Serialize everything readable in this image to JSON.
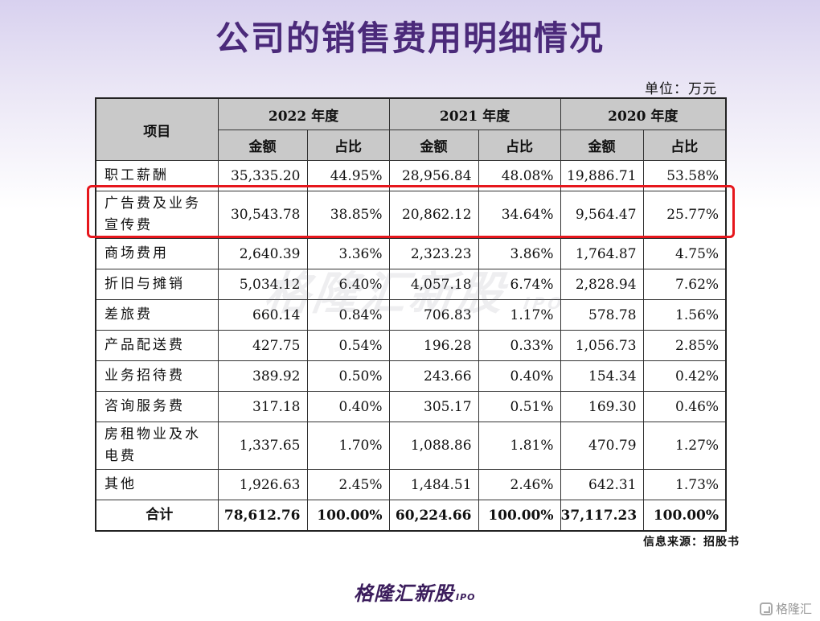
{
  "title": "公司的销售费用明细情况",
  "unit": "单位：万元",
  "table": {
    "item_header": "项目",
    "years": [
      "2022 年度",
      "2021 年度",
      "2020 年度"
    ],
    "amount_label": "金额",
    "ratio_label": "占比",
    "rows": [
      {
        "name": "职工薪酬",
        "v": [
          "35,335.20",
          "44.95%",
          "28,956.84",
          "48.08%",
          "19,886.71",
          "53.58%"
        ]
      },
      {
        "name": "广告费及业务宣传费",
        "v": [
          "30,543.78",
          "38.85%",
          "20,862.12",
          "34.64%",
          "9,564.47",
          "25.77%"
        ]
      },
      {
        "name": "商场费用",
        "v": [
          "2,640.39",
          "3.36%",
          "2,323.23",
          "3.86%",
          "1,764.87",
          "4.75%"
        ]
      },
      {
        "name": "折旧与摊销",
        "v": [
          "5,034.12",
          "6.40%",
          "4,057.18",
          "6.74%",
          "2,828.94",
          "7.62%"
        ]
      },
      {
        "name": "差旅费",
        "v": [
          "660.14",
          "0.84%",
          "706.83",
          "1.17%",
          "578.78",
          "1.56%"
        ]
      },
      {
        "name": "产品配送费",
        "v": [
          "427.75",
          "0.54%",
          "196.28",
          "0.33%",
          "1,056.73",
          "2.85%"
        ]
      },
      {
        "name": "业务招待费",
        "v": [
          "389.92",
          "0.50%",
          "243.66",
          "0.40%",
          "154.34",
          "0.42%"
        ]
      },
      {
        "name": "咨询服务费",
        "v": [
          "317.18",
          "0.40%",
          "305.17",
          "0.51%",
          "169.30",
          "0.46%"
        ]
      },
      {
        "name": "房租物业及水电费",
        "v": [
          "1,337.65",
          "1.70%",
          "1,088.86",
          "1.81%",
          "470.79",
          "1.27%"
        ]
      },
      {
        "name": "其他",
        "v": [
          "1,926.63",
          "2.45%",
          "1,484.51",
          "2.46%",
          "642.31",
          "1.73%"
        ]
      },
      {
        "name": "合计",
        "v": [
          "78,612.76",
          "100.00%",
          "60,224.66",
          "100.00%",
          "37,117.23",
          "100.00%"
        ]
      }
    ]
  },
  "watermark": "格隆汇新股",
  "watermark_ipo": "IPO",
  "source": "信息来源：招股书",
  "logo": "格隆汇新股",
  "logo_ipo": "IPO",
  "corner_text": "格隆汇",
  "accent_color": "#4b2a7a",
  "highlight_color": "#e6161c"
}
